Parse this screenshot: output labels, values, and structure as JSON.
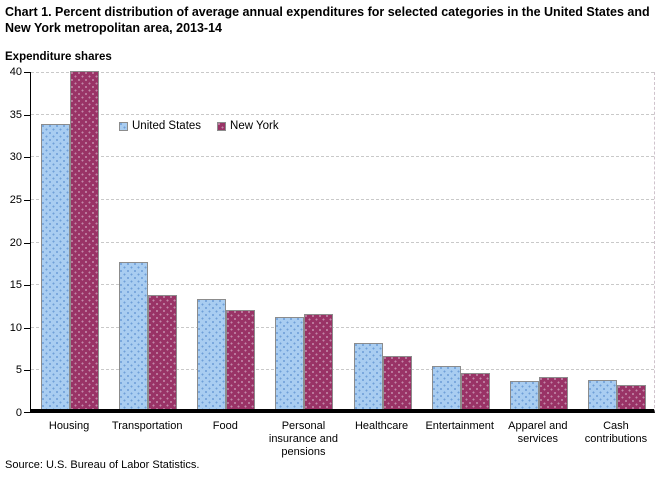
{
  "title": "Chart 1. Percent distribution of average annual expenditures for selected categories in the United States and New York metropolitan area, 2013-14",
  "y_axis_title": "Expenditure shares",
  "source": "Source: U.S. Bureau of Labor Statistics.",
  "colors": {
    "united_states_fill": "#a9cdf1",
    "united_states_dots": "#6f9fd8",
    "new_york_fill": "#993366",
    "new_york_dots": "#c289a9",
    "bar_border": "#8c8c8c",
    "gridline": "#c9c9c9",
    "axis": "#000000"
  },
  "chart_data": {
    "type": "bar",
    "title": "Chart 1. Percent distribution of average annual expenditures for selected categories in the United States and New York metropolitan area, 2013-14",
    "ylabel": "Expenditure shares",
    "xlabel": "",
    "ylim": [
      0,
      40
    ],
    "yticks": [
      0,
      5,
      10,
      15,
      20,
      25,
      30,
      35,
      40
    ],
    "grid": true,
    "legend_position": "inside-top-left",
    "categories": [
      "Housing",
      "Transportation",
      "Food",
      "Personal insurance and pensions",
      "Healthcare",
      "Entertainment",
      "Apparel and services",
      "Cash contributions"
    ],
    "series": [
      {
        "name": "United States",
        "values": [
          33.4,
          17.3,
          12.9,
          10.8,
          7.7,
          5.0,
          3.3,
          3.4
        ]
      },
      {
        "name": "New York",
        "values": [
          39.6,
          13.4,
          11.6,
          11.1,
          6.2,
          4.2,
          3.7,
          2.8
        ]
      }
    ]
  }
}
